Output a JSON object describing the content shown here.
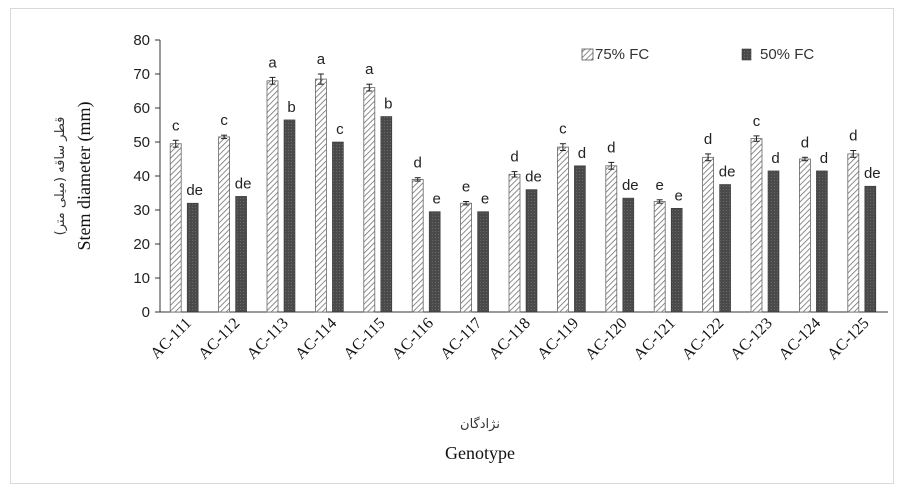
{
  "chart_data": {
    "type": "bar",
    "ylabel": "Stem diameter (mm)",
    "ylabel_fa": "قطر ساقه (میلی متر)",
    "xlabel": "Genotype",
    "xlabel_fa": "نژادگان",
    "ylim": [
      0,
      80
    ],
    "yticks": [
      0,
      10,
      20,
      30,
      40,
      50,
      60,
      70,
      80
    ],
    "categories": [
      "AC-111",
      "AC-112",
      "AC-113",
      "AC-114",
      "AC-115",
      "AC-116",
      "AC-117",
      "AC-118",
      "AC-119",
      "AC-120",
      "AC-121",
      "AC-122",
      "AC-123",
      "AC-124",
      "AC-125"
    ],
    "legend_position": "top-right",
    "grid": false,
    "series": [
      {
        "name": "75% FC",
        "pattern": "hatched",
        "color": "#6b6b6b",
        "values": [
          49.5,
          51.5,
          68,
          68.5,
          66,
          39,
          32,
          40.5,
          48.5,
          43,
          32.5,
          45.5,
          51,
          45,
          46.5
        ],
        "errors": [
          1,
          0.5,
          1,
          1.5,
          1,
          0.5,
          0.5,
          0.8,
          1,
          1,
          0.5,
          1,
          0.8,
          0.5,
          1
        ],
        "letters": [
          "c",
          "c",
          "a",
          "a",
          "a",
          "d",
          "e",
          "d",
          "c",
          "d",
          "e",
          "d",
          "c",
          "d",
          "d"
        ]
      },
      {
        "name": "50% FC",
        "pattern": "solid",
        "color": "#4a4a4a",
        "values": [
          32,
          34,
          56.5,
          50,
          57.5,
          29.5,
          29.5,
          36,
          43,
          33.5,
          30.5,
          37.5,
          41.5,
          41.5,
          37
        ],
        "letters": [
          "de",
          "de",
          "b",
          "c",
          "b",
          "e",
          "e",
          "de",
          "d",
          "de",
          "e",
          "de",
          "d",
          "d",
          "de"
        ]
      }
    ]
  }
}
